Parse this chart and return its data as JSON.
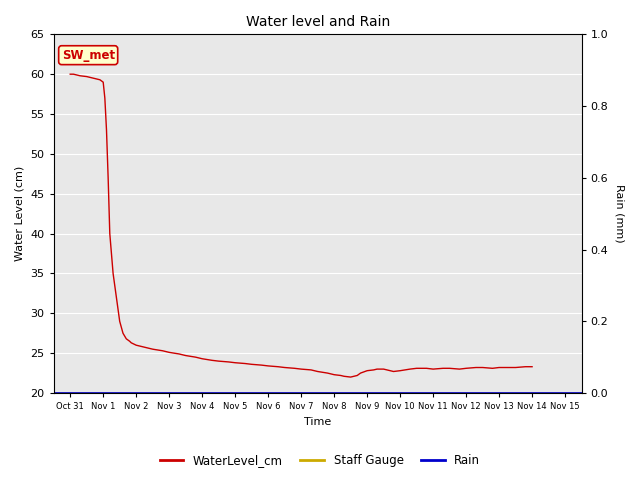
{
  "title": "Water level and Rain",
  "xlabel": "Time",
  "ylabel_left": "Water Level (cm)",
  "ylabel_right": "Rain (mm)",
  "annotation_text": "SW_met",
  "annotation_bg": "#ffffcc",
  "annotation_border": "#cc0000",
  "annotation_text_color": "#cc0000",
  "ylim_left": [
    20,
    65
  ],
  "ylim_right": [
    0.0,
    1.0
  ],
  "legend_entries": [
    "WaterLevel_cm",
    "Staff Gauge",
    "Rain"
  ],
  "legend_colors": [
    "#cc0000",
    "#ccaa00",
    "#0000cc"
  ],
  "water_level_color": "#cc0000",
  "staff_gauge_color": "#ccaa00",
  "rain_color": "#0000cc",
  "bg_color": "#e8e8e8",
  "grid_color": "#ffffff",
  "x_tick_labels": [
    "Oct 31",
    "Nov 1",
    "Nov 2",
    "Nov 3",
    "Nov 4",
    "Nov 5",
    "Nov 6",
    "Nov 7",
    "Nov 8",
    "Nov 9",
    "Nov 10",
    "Nov 11",
    "Nov 12",
    "Nov 13",
    "Nov 14",
    "Nov 15"
  ],
  "water_level_x": [
    0.0,
    0.1,
    0.2,
    0.3,
    0.5,
    0.7,
    0.9,
    1.0,
    1.05,
    1.1,
    1.15,
    1.2,
    1.3,
    1.5,
    1.6,
    1.7,
    1.8,
    1.85,
    1.9,
    2.0,
    2.2,
    2.5,
    2.8,
    3.0,
    3.3,
    3.5,
    3.8,
    4.0,
    4.3,
    4.5,
    4.8,
    5.0,
    5.3,
    5.5,
    5.8,
    6.0,
    6.3,
    6.5,
    6.8,
    7.0,
    7.3,
    7.5,
    7.8,
    8.0,
    8.2,
    8.3,
    8.5,
    8.7,
    8.8,
    9.0,
    9.2,
    9.3,
    9.5,
    9.7,
    9.8,
    10.0,
    10.3,
    10.5,
    10.8,
    11.0,
    11.3,
    11.5,
    11.8,
    12.0,
    12.3,
    12.5,
    12.8,
    13.0,
    13.3,
    13.5,
    13.8,
    14.0
  ],
  "water_level_y": [
    60.0,
    60.0,
    59.9,
    59.8,
    59.7,
    59.5,
    59.3,
    59.0,
    57.0,
    53.0,
    47.0,
    40.0,
    35.0,
    29.0,
    27.5,
    26.8,
    26.5,
    26.3,
    26.2,
    26.0,
    25.8,
    25.5,
    25.3,
    25.1,
    24.9,
    24.7,
    24.5,
    24.3,
    24.1,
    24.0,
    23.9,
    23.8,
    23.7,
    23.6,
    23.5,
    23.4,
    23.3,
    23.2,
    23.1,
    23.0,
    22.9,
    22.7,
    22.5,
    22.3,
    22.2,
    22.1,
    22.0,
    22.2,
    22.5,
    22.8,
    22.9,
    23.0,
    23.0,
    22.8,
    22.7,
    22.8,
    23.0,
    23.1,
    23.1,
    23.0,
    23.1,
    23.1,
    23.0,
    23.1,
    23.2,
    23.2,
    23.1,
    23.2,
    23.2,
    23.2,
    23.3,
    23.3
  ]
}
